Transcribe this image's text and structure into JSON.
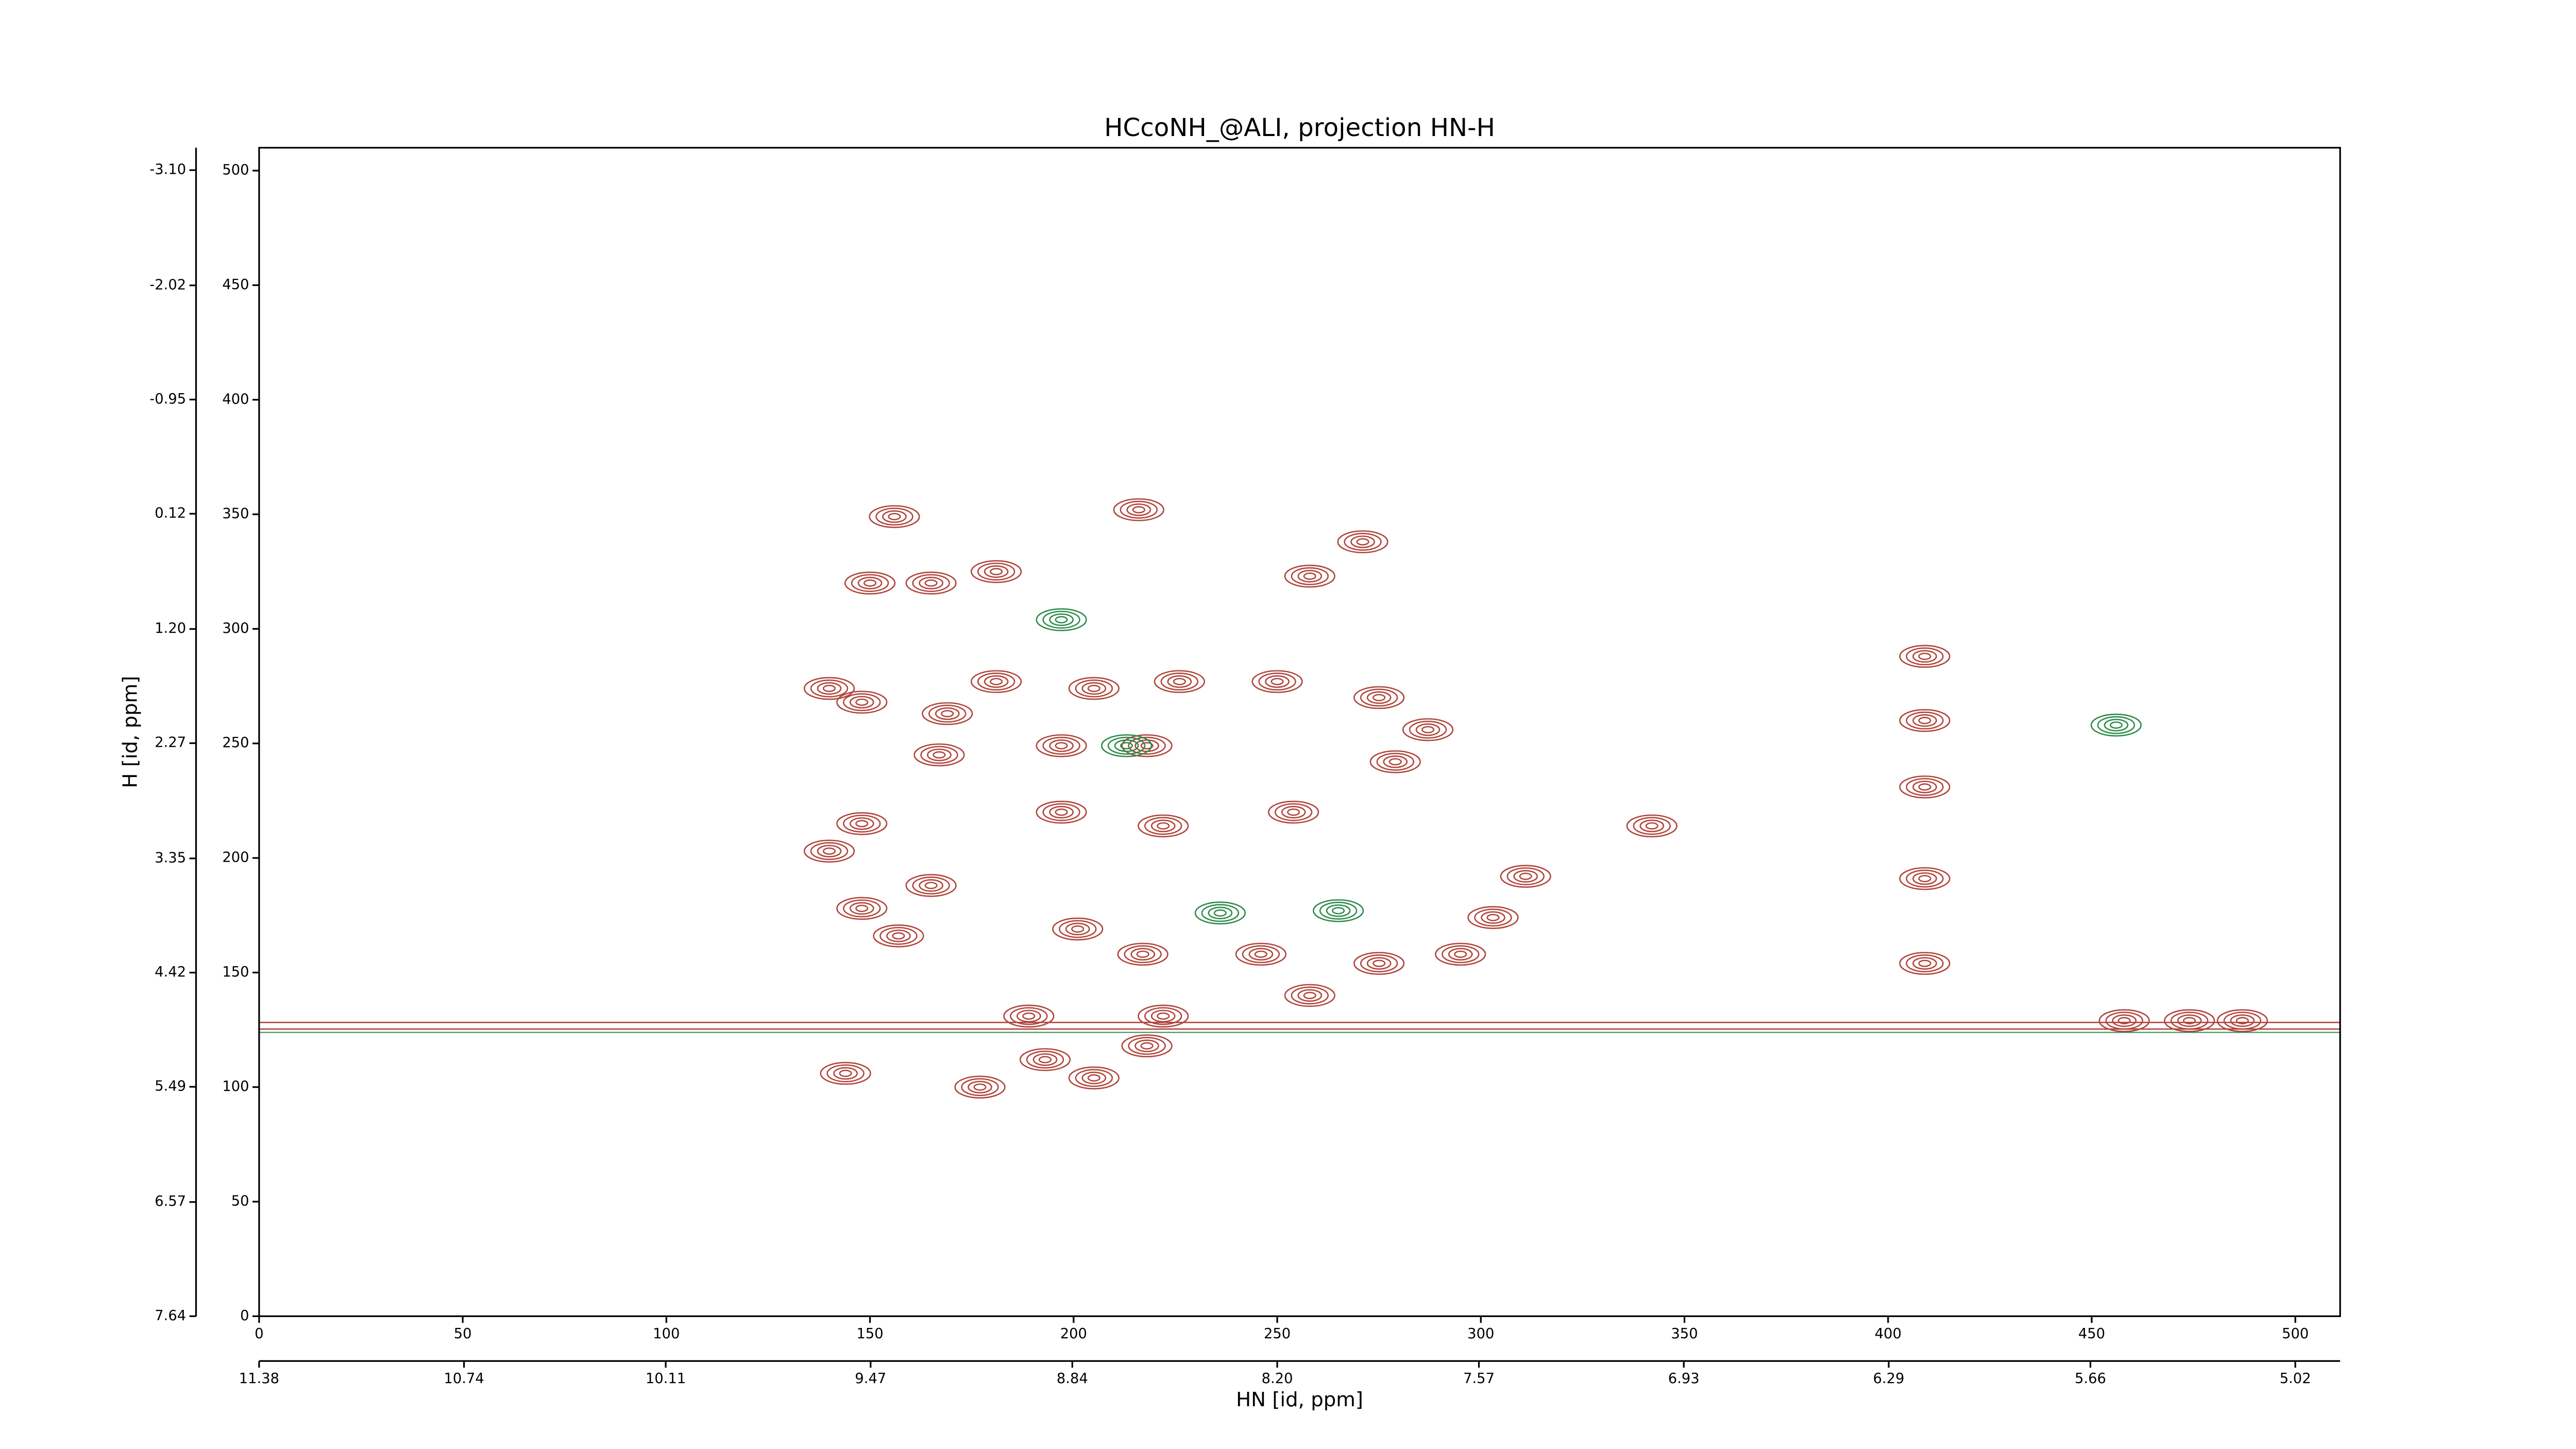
{
  "chart_data": {
    "type": "contour",
    "title": "HCcoNH_@ALI, projection HN-H",
    "xlabel": "HN [id, ppm]",
    "ylabel": "H [id, ppm]",
    "xlim": [
      0,
      511
    ],
    "ylim": [
      0,
      510
    ],
    "xticks": [
      0,
      50,
      100,
      150,
      200,
      250,
      300,
      350,
      400,
      450,
      500
    ],
    "yticks": [
      0,
      50,
      100,
      150,
      200,
      250,
      300,
      350,
      400,
      450,
      500
    ],
    "x2lim": [
      11.38,
      4.88
    ],
    "x2ticks": [
      11.38,
      10.74,
      10.11,
      9.47,
      8.84,
      {
        "value": 8.2,
        "label": "8.20"
      },
      7.57,
      6.93,
      6.29,
      5.66,
      5.02
    ],
    "y2lim": [
      7.64,
      -3.31
    ],
    "y2ticks": [
      7.64,
      6.57,
      5.49,
      4.42,
      3.35,
      2.27,
      {
        "value": 1.2,
        "label": "1.20"
      },
      0.12,
      -0.95,
      -2.02,
      {
        "value": -3.1,
        "label": "-3.10"
      }
    ],
    "series": [
      {
        "color": "#b0453c",
        "x": [
          156,
          150,
          165,
          181,
          258,
          271,
          216,
          140,
          148,
          169,
          181,
          205,
          226,
          250,
          275,
          287,
          167,
          197,
          218,
          279,
          148,
          140,
          197,
          222,
          254,
          311,
          165,
          148,
          157,
          201,
          217,
          246,
          303,
          275,
          295,
          189,
          222,
          258,
          144,
          177,
          205,
          218,
          193,
          342,
          409,
          409,
          409,
          409,
          409,
          458,
          474,
          487
        ],
        "values": [
          349,
          320,
          320,
          325,
          323,
          338,
          352,
          274,
          268,
          263,
          277,
          274,
          277,
          277,
          270,
          256,
          245,
          249,
          249,
          242,
          215,
          203,
          220,
          214,
          220,
          192,
          188,
          178,
          166,
          169,
          158,
          158,
          174,
          154,
          158,
          131,
          131,
          140,
          106,
          100,
          104,
          118,
          112,
          214,
          288,
          260,
          231,
          191,
          154,
          129,
          129,
          129
        ]
      },
      {
        "color": "#2e8b4a",
        "x": [
          236,
          265,
          213,
          197,
          456
        ],
        "values": [
          176,
          177,
          249,
          304,
          258
        ]
      }
    ]
  }
}
